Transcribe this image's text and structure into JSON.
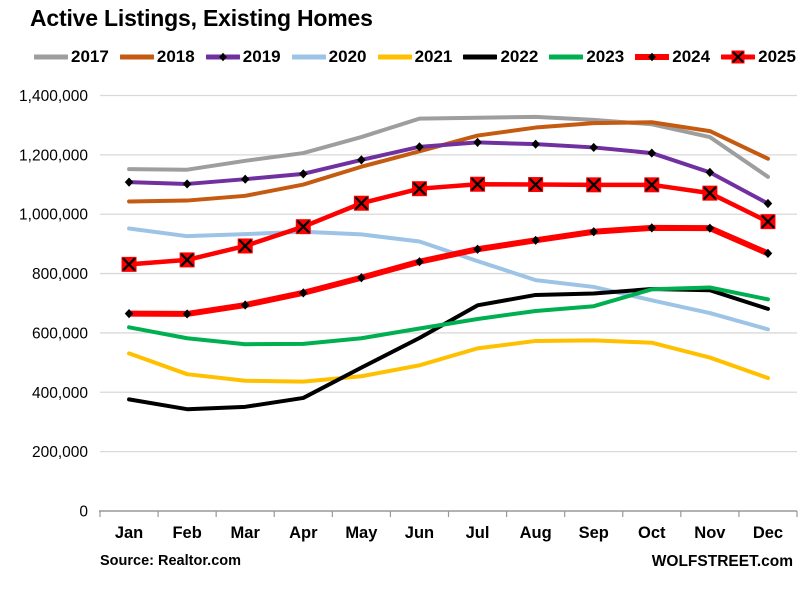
{
  "footer": {
    "source": "Source: Realtor.com",
    "brand": "WOLFSTREET.com"
  },
  "chart_data": {
    "type": "line",
    "title": "Active Listings, Existing Homes",
    "xlabel": "",
    "ylabel": "",
    "categories": [
      "Jan",
      "Feb",
      "Mar",
      "Apr",
      "May",
      "Jun",
      "Jul",
      "Aug",
      "Sep",
      "Oct",
      "Nov",
      "Dec"
    ],
    "ylim": [
      0,
      1400000
    ],
    "ytick_interval": 200000,
    "ytick_labels": [
      "0",
      "200,000",
      "400,000",
      "600,000",
      "800,000",
      "1,000,000",
      "1,200,000",
      "1,400,000"
    ],
    "grid": true,
    "legend_position": "top",
    "colors": {
      "grid": "#d9d9d9",
      "axis": "#999999",
      "text": "#000000"
    },
    "series": [
      {
        "name": "2017",
        "color": "#9e9e9e",
        "width": 4,
        "marker": "none",
        "values": [
          1152000,
          1150000,
          1180000,
          1206000,
          1260000,
          1322000,
          1325000,
          1328000,
          1318000,
          1303000,
          1260000,
          1126000
        ]
      },
      {
        "name": "2018",
        "color": "#c55a11",
        "width": 4,
        "marker": "none",
        "values": [
          1043000,
          1046000,
          1062000,
          1100000,
          1160000,
          1212000,
          1265000,
          1292000,
          1307000,
          1310000,
          1280000,
          1187000
        ]
      },
      {
        "name": "2019",
        "color": "#7030a0",
        "width": 4,
        "marker": "diamond",
        "values": [
          1108000,
          1102000,
          1118000,
          1136000,
          1183000,
          1227000,
          1242000,
          1236000,
          1225000,
          1206000,
          1141000,
          1036000
        ]
      },
      {
        "name": "2020",
        "color": "#9dc3e6",
        "width": 4,
        "marker": "none",
        "values": [
          952000,
          926000,
          933000,
          941000,
          932000,
          908000,
          842000,
          778000,
          755000,
          710000,
          667000,
          612000
        ]
      },
      {
        "name": "2021",
        "color": "#ffc000",
        "width": 4,
        "marker": "none",
        "values": [
          531000,
          461000,
          439000,
          436000,
          454000,
          491000,
          548000,
          573000,
          575000,
          567000,
          517000,
          448000
        ]
      },
      {
        "name": "2022",
        "color": "#000000",
        "width": 4,
        "marker": "none",
        "values": [
          376000,
          343000,
          351000,
          381000,
          483000,
          583000,
          693000,
          728000,
          733000,
          748000,
          744000,
          681000
        ]
      },
      {
        "name": "2023",
        "color": "#00b050",
        "width": 4,
        "marker": "none",
        "values": [
          619000,
          582000,
          562000,
          563000,
          582000,
          615000,
          647000,
          674000,
          690000,
          747000,
          753000,
          713000
        ]
      },
      {
        "name": "2024",
        "color": "#ff0000",
        "width": 6,
        "marker": "diamond",
        "values": [
          665000,
          664000,
          694000,
          735000,
          786000,
          840000,
          882000,
          912000,
          941000,
          954000,
          953000,
          868000
        ]
      },
      {
        "name": "2025",
        "color": "#ff0000",
        "width": 4.5,
        "marker": "x-square",
        "values": [
          831000,
          846000,
          893000,
          958000,
          1037000,
          1086000,
          1101000,
          1100000,
          1099000,
          1099000,
          1071000,
          975000
        ]
      }
    ]
  }
}
